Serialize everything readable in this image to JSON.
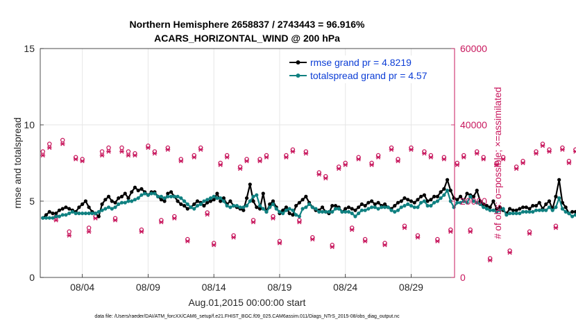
{
  "chart_data": {
    "type": "line",
    "title": [
      "Northern Hemisphere 2658837 / 2743443 = 96.916%",
      "ACARS_HORIZONTAL_WIND @ 200 hPa"
    ],
    "xlabel": "Aug.01,2015 00:00:00 start",
    "ylabel": "rmse and totalspread",
    "ylabel_right": "# of obs: o=possible; ×=assimilated",
    "xlim": [
      0.8,
      32.3
    ],
    "ylim": [
      0,
      15
    ],
    "ylim_right": [
      0,
      60000
    ],
    "x_ticks": [
      {
        "value": 4,
        "label": "08/04"
      },
      {
        "value": 9,
        "label": "08/09"
      },
      {
        "value": 14,
        "label": "08/14"
      },
      {
        "value": 19,
        "label": "08/19"
      },
      {
        "value": 24,
        "label": "08/24"
      },
      {
        "value": 29,
        "label": "08/29"
      }
    ],
    "y_ticks": [
      0,
      5,
      10,
      15
    ],
    "y_ticks_right": [
      0,
      20000,
      40000,
      60000
    ],
    "grid": true,
    "legend_position": "top-right",
    "footer": "data file: /Users/raeder/DAI/ATM_forcXX/CAM6_setup/f.e21.FHIST_BGC.f09_025.CAM6assim.011/Diags_NTrS_2015-08/obs_diag_output.nc",
    "colors": {
      "rmse": "#000000",
      "spread": "#0f8080",
      "obs": "#c8175d",
      "legend_text": "#0b3dd6",
      "grid": "#e6e6e6"
    },
    "series": [
      {
        "name": "rmse grand pr = 4.8219",
        "type": "line",
        "x_start": 1.0,
        "x_step": 0.25,
        "values": [
          3.9,
          4.1,
          4.3,
          4.2,
          4.2,
          4.4,
          4.5,
          4.6,
          4.5,
          4.4,
          4.3,
          4.6,
          4.8,
          5.0,
          4.6,
          4.3,
          4.2,
          4.0,
          4.8,
          5.1,
          5.3,
          5.0,
          4.9,
          5.2,
          5.3,
          5.5,
          5.2,
          5.6,
          5.9,
          5.7,
          5.8,
          5.6,
          5.4,
          5.6,
          5.6,
          5.3,
          5.1,
          5.0,
          5.5,
          5.6,
          5.3,
          5.0,
          4.8,
          4.7,
          4.5,
          4.6,
          4.8,
          5.0,
          4.9,
          4.7,
          4.9,
          5.0,
          5.1,
          5.5,
          5.0,
          5.2,
          4.8,
          5.0,
          4.7,
          4.6,
          4.5,
          4.4,
          5.2,
          6.1,
          5.0,
          4.6,
          4.5,
          5.5,
          4.3,
          4.8,
          5.0,
          4.6,
          4.2,
          4.4,
          4.6,
          4.2,
          4.1,
          4.7,
          4.9,
          5.1,
          5.3,
          4.9,
          4.6,
          4.4,
          4.4,
          4.6,
          4.3,
          4.2,
          4.7,
          4.7,
          4.6,
          4.3,
          4.5,
          4.6,
          4.5,
          4.4,
          4.6,
          4.8,
          4.7,
          4.9,
          5.0,
          4.8,
          4.9,
          4.7,
          4.8,
          4.6,
          4.5,
          4.7,
          4.9,
          5.0,
          5.2,
          5.1,
          5.0,
          4.9,
          5.1,
          5.3,
          5.4,
          5.0,
          5.1,
          5.3,
          5.3,
          5.6,
          5.8,
          6.4,
          5.7,
          5.2,
          5.1,
          5.3,
          5.0,
          5.5,
          5.4,
          5.3,
          5.7,
          5.0,
          4.8,
          4.7,
          4.6,
          5.0,
          4.5,
          4.6,
          4.4,
          4.2,
          4.5,
          4.4,
          4.4,
          4.5,
          4.6,
          4.6,
          4.5,
          4.7,
          4.7,
          4.9,
          4.5,
          4.8,
          5.0,
          4.5,
          5.3,
          6.4,
          4.9,
          4.6,
          4.2,
          4.3,
          4.3,
          4.2,
          4.5,
          4.4,
          4.0,
          3.9,
          3.8,
          3.5,
          3.6,
          3.7,
          3.9,
          3.8,
          3.9,
          4.0,
          3.8,
          3.9,
          4.0,
          3.8,
          3.9,
          4.3,
          4.2,
          4.4,
          4.3,
          4.5,
          4.6,
          4.5,
          4.8,
          4.6,
          4.4,
          5.0,
          5.0,
          4.9,
          5.2,
          5.4,
          5.3,
          5.2,
          4.9,
          4.7,
          5.0,
          5.1,
          4.9,
          5.0,
          5.3,
          5.5,
          5.2,
          4.8,
          4.9,
          5.0,
          5.2,
          5.5,
          5.0,
          4.8,
          5.1,
          5.4,
          5.6,
          5.5,
          5.0,
          4.8,
          5.0,
          4.6,
          5.2,
          4.7,
          4.4,
          4.2,
          4.2
        ]
      },
      {
        "name": "totalspread grand pr = 4.57",
        "type": "line",
        "x_start": 1.0,
        "x_step": 0.25,
        "values": [
          3.9,
          3.9,
          3.9,
          3.9,
          4.0,
          4.0,
          4.1,
          4.1,
          4.2,
          4.3,
          4.2,
          4.2,
          4.2,
          4.2,
          4.2,
          4.2,
          4.2,
          4.3,
          4.4,
          4.5,
          4.6,
          4.5,
          4.6,
          4.8,
          4.9,
          4.9,
          5.0,
          5.0,
          5.1,
          5.2,
          5.4,
          5.5,
          5.4,
          5.5,
          5.5,
          5.3,
          5.3,
          5.2,
          5.3,
          5.3,
          5.3,
          5.3,
          5.2,
          5.0,
          4.8,
          4.6,
          4.5,
          4.7,
          4.8,
          5.0,
          5.1,
          5.2,
          5.3,
          5.2,
          5.2,
          5.0,
          4.7,
          4.6,
          4.7,
          4.7,
          4.6,
          4.6,
          4.7,
          5.0,
          5.3,
          5.4,
          4.7,
          4.5,
          4.3,
          4.6,
          4.8,
          4.5,
          4.3,
          4.2,
          4.4,
          4.5,
          4.4,
          4.1,
          4.0,
          4.5,
          4.6,
          4.8,
          4.6,
          4.5,
          4.3,
          4.3,
          4.3,
          4.3,
          4.3,
          4.5,
          4.5,
          4.3,
          4.3,
          4.3,
          4.2,
          4.0,
          4.2,
          4.4,
          4.4,
          4.5,
          4.6,
          4.6,
          4.5,
          4.6,
          4.6,
          4.6,
          4.4,
          4.3,
          4.4,
          4.6,
          4.7,
          4.8,
          4.7,
          4.6,
          4.6,
          4.9,
          5.0,
          4.7,
          4.7,
          4.9,
          5.0,
          5.2,
          5.4,
          5.7,
          5.0,
          4.6,
          4.9,
          4.9,
          5.0,
          4.9,
          5.3,
          5.0,
          4.9,
          4.8,
          4.6,
          4.5,
          4.4,
          4.4,
          4.3,
          4.4,
          4.5,
          4.1,
          4.2,
          4.2,
          4.2,
          4.2,
          4.3,
          4.3,
          4.3,
          4.3,
          4.4,
          4.4,
          4.4,
          4.4,
          4.6,
          4.4,
          4.6,
          5.2,
          4.5,
          4.3,
          4.2,
          4.0,
          4.1,
          4.1,
          4.0,
          4.0,
          3.9,
          3.8,
          3.8,
          3.8,
          3.8,
          3.8,
          3.8,
          3.8,
          3.8,
          3.8,
          3.8,
          3.8,
          3.8,
          3.9,
          3.9,
          4.1,
          4.1,
          4.1,
          4.2,
          4.3,
          4.4,
          4.4,
          4.6,
          4.7,
          4.8,
          5.0,
          5.0,
          5.1,
          5.2,
          5.4,
          5.2,
          5.0,
          4.9,
          4.6,
          4.7,
          4.8,
          4.8,
          4.9,
          4.9,
          5.0,
          4.9,
          4.7,
          4.8,
          4.7,
          4.8,
          5.0,
          4.9,
          4.7,
          4.9,
          5.3,
          5.4,
          5.1,
          5.0,
          5.3,
          5.4,
          5.2,
          5.1,
          4.8,
          4.4,
          4.1,
          4.1
        ]
      },
      {
        "name": "obs possible",
        "type": "scatter",
        "marker": "o",
        "x_start": 1.0,
        "x_step": 0.5,
        "values": [
          33000,
          35000,
          16000,
          36000,
          12000,
          31500,
          31000,
          13000,
          16000,
          33000,
          34000,
          15500,
          34000,
          33000,
          32500,
          12500,
          34500,
          33000,
          15000,
          34000,
          16000,
          31000,
          10000,
          32000,
          34000,
          17000,
          9000,
          30000,
          32000,
          11000,
          29000,
          31000,
          15000,
          31000,
          32000,
          16000,
          9500,
          32000,
          33500,
          15000,
          33000,
          10500,
          27500,
          26500,
          8500,
          29000,
          30000,
          13000,
          31500,
          10000,
          30000,
          32000,
          9000,
          34000,
          31000,
          13500,
          34000,
          11000,
          33000,
          32000,
          10000,
          31500,
          12500,
          30000,
          32000,
          12500,
          33000,
          31500,
          5000,
          30000,
          31500,
          7000,
          29000,
          30500,
          12000,
          33000,
          35000,
          33500,
          13500,
          34000,
          30500,
          33500,
          11000,
          33000,
          11500,
          26500,
          28000,
          5500,
          30000,
          32000,
          12000,
          33000
        ]
      },
      {
        "name": "obs assimilated",
        "type": "scatter",
        "marker": "x",
        "x_start": 1.0,
        "x_step": 0.5,
        "values": [
          32000,
          34000,
          15000,
          35000,
          11000,
          31000,
          30500,
          12000,
          15500,
          32000,
          33000,
          15000,
          33000,
          32000,
          32000,
          12000,
          34000,
          32500,
          14500,
          33500,
          15500,
          30500,
          9500,
          31500,
          33500,
          16500,
          8500,
          29500,
          31500,
          10500,
          28500,
          30500,
          14500,
          30500,
          31500,
          15500,
          9000,
          31500,
          33000,
          14500,
          32500,
          10000,
          27000,
          26000,
          8000,
          28500,
          29500,
          12500,
          31000,
          9500,
          29500,
          31500,
          8500,
          33500,
          30500,
          13000,
          33500,
          10500,
          32500,
          31500,
          9500,
          31000,
          12000,
          29500,
          31500,
          12000,
          32500,
          31000,
          4500,
          29500,
          31000,
          6500,
          28500,
          30000,
          11500,
          32500,
          34500,
          33000,
          13000,
          33500,
          30000,
          33000,
          10500,
          32500,
          11000,
          26000,
          27500,
          5000,
          29500,
          31500,
          11500,
          32500
        ]
      }
    ]
  }
}
